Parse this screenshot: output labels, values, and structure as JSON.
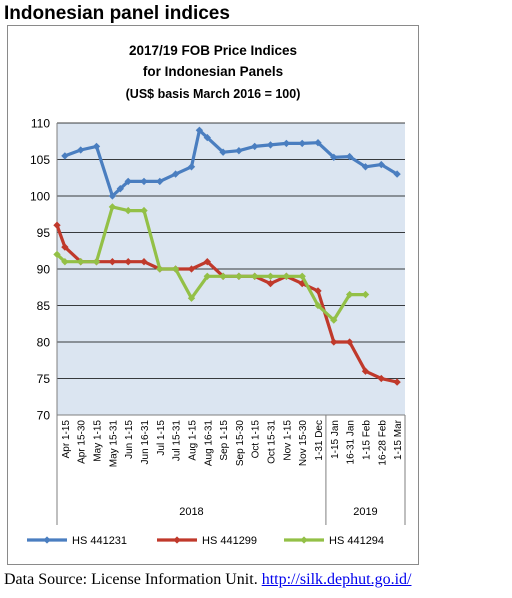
{
  "page_heading": "Indonesian panel indices",
  "source": {
    "prefix": "Data Source: License Information Unit. ",
    "link": "http://silk.dephut.go.id/"
  },
  "colors": {
    "HS 441231": "#4a7ec0",
    "HS 441299": "#c0392b",
    "HS 441294": "#93c047",
    "plot_background": "#dbe5f1",
    "gridline": "#000000"
  },
  "chart_data": {
    "type": "line",
    "title": "2017/19 FOB Price Indices",
    "subtitle": "for Indonesian Panels",
    "subtitle2": "(US$ basis March 2016 = 100)",
    "xlabel": "",
    "ylabel": "",
    "ylim": [
      70,
      110
    ],
    "yticks": [
      70,
      75,
      80,
      85,
      90,
      95,
      100,
      105,
      110
    ],
    "grid": true,
    "legend_position": "bottom",
    "categories": [
      "Apr 1-15",
      "Apr 15-30",
      "May 1-15",
      "May 15-31",
      "Jun 1-15",
      "Jun 16-31",
      "Jul 1-15",
      "Jul 15-31",
      "Aug 1-15",
      "Aug 16-31",
      "Sep 1-15",
      "Sep 15-30",
      "Oct 1-15",
      "Oct 15-31",
      "Nov 1-15",
      "Nov 15-30",
      "1-31 Dec",
      "1-15 Jan",
      "16-31 Jan",
      "1-15 Feb",
      "16-28 Feb",
      "1-15 Mar"
    ],
    "year_groups": [
      {
        "label": "2018",
        "from": 0,
        "to": 16
      },
      {
        "label": "2019",
        "from": 17,
        "to": 21
      }
    ],
    "series": [
      {
        "name": "HS 441231",
        "x": [
          0,
          1,
          2,
          3,
          3.5,
          4,
          5,
          6,
          7,
          8,
          8.5,
          9,
          10,
          11,
          12,
          13,
          14,
          15,
          16,
          17,
          18,
          19,
          20,
          21
        ],
        "values": [
          105.5,
          106.3,
          106.8,
          100.0,
          101.0,
          102.0,
          102.0,
          102.0,
          103.0,
          104.0,
          109.0,
          108.0,
          106.0,
          106.2,
          106.8,
          107.0,
          107.2,
          107.2,
          107.3,
          105.3,
          105.4,
          104.0,
          104.3,
          103.0
        ]
      },
      {
        "name": "HS 441299",
        "x": [
          -0.5,
          0,
          1,
          2,
          3,
          4,
          5,
          6,
          7,
          8,
          9,
          10,
          11,
          12,
          13,
          14,
          15,
          16,
          17,
          18,
          19,
          20,
          21
        ],
        "values": [
          96.0,
          93.0,
          91.0,
          91.0,
          91.0,
          91.0,
          91.0,
          90.0,
          90.0,
          90.0,
          91.0,
          89.0,
          89.0,
          89.0,
          88.0,
          89.0,
          88.0,
          87.0,
          80.0,
          80.0,
          76.0,
          75.0,
          74.5
        ]
      },
      {
        "name": "HS 441294",
        "x": [
          -0.5,
          0,
          1,
          2,
          3,
          4,
          5,
          6,
          7,
          8,
          9,
          10,
          11,
          12,
          13,
          14,
          15,
          16,
          17,
          18,
          19
        ],
        "values": [
          92.0,
          91.0,
          91.0,
          91.0,
          98.5,
          98.0,
          98.0,
          90.0,
          90.0,
          86.0,
          89.0,
          89.0,
          89.0,
          89.0,
          89.0,
          89.0,
          89.0,
          85.0,
          83.0,
          86.5,
          86.5
        ]
      }
    ]
  }
}
